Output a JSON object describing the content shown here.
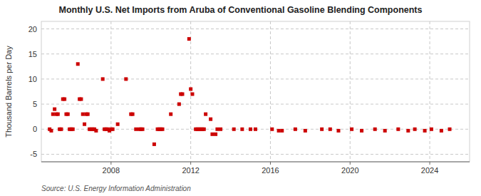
{
  "chart_data": {
    "type": "scatter",
    "title": "Monthly U.S. Net Imports from Aruba of Conventional Gasoline Blending Components",
    "y_label": "Thousand Barrels per Day",
    "annotations": [
      "Source: U.S. Energy Information Administration"
    ],
    "color": "#cc0000",
    "marker": "square",
    "grid": true,
    "xlim": [
      2004.5,
      2026.0
    ],
    "ylim": [
      -6.5,
      21.5
    ],
    "xticks": [
      2008,
      2012,
      2016,
      2020,
      2024
    ],
    "yticks": [
      -5,
      0,
      5,
      10,
      15,
      20
    ],
    "x": [
      2004.917,
      2005.0,
      2005.083,
      2005.167,
      2005.25,
      2005.333,
      2005.417,
      2005.5,
      2005.583,
      2005.667,
      2005.75,
      2005.833,
      2005.917,
      2006.0,
      2006.083,
      2006.333,
      2006.417,
      2006.5,
      2006.583,
      2006.667,
      2006.75,
      2006.833,
      2006.917,
      2007.0,
      2007.083,
      2007.167,
      2007.25,
      2007.583,
      2007.667,
      2007.75,
      2007.833,
      2007.917,
      2008.0,
      2008.083,
      2008.333,
      2008.75,
      2009.0,
      2009.083,
      2009.25,
      2009.417,
      2009.5,
      2009.583,
      2010.167,
      2010.333,
      2010.417,
      2010.5,
      2010.583,
      2011.0,
      2011.417,
      2011.5,
      2011.583,
      2011.917,
      2012.0,
      2012.083,
      2012.25,
      2012.333,
      2012.417,
      2012.5,
      2012.583,
      2012.667,
      2012.75,
      2013.0,
      2013.083,
      2013.25,
      2013.333,
      2013.5,
      2014.167,
      2014.583,
      2015.0,
      2015.25,
      2016.083,
      2016.417,
      2016.583,
      2017.25,
      2017.75,
      2018.583,
      2019.0,
      2019.417,
      2020.083,
      2020.583,
      2021.25,
      2021.75,
      2022.417,
      2022.917,
      2023.25,
      2023.75,
      2024.083,
      2024.583,
      2025.0
    ],
    "values": [
      0.0,
      -0.3,
      3.0,
      4.0,
      3.0,
      3.0,
      0.0,
      0.0,
      6.0,
      6.0,
      3.0,
      3.0,
      0.0,
      0.0,
      0.0,
      13.0,
      6.0,
      6.0,
      3.0,
      1.0,
      3.0,
      3.0,
      0.0,
      0.0,
      0.0,
      0.0,
      -0.3,
      10.0,
      0.0,
      0.0,
      0.0,
      -0.3,
      0.0,
      0.0,
      1.0,
      10.0,
      3.0,
      3.0,
      0.0,
      0.0,
      0.0,
      0.0,
      -3.0,
      0.0,
      0.0,
      0.0,
      0.0,
      3.0,
      5.0,
      7.0,
      7.0,
      18.0,
      8.0,
      7.0,
      0.0,
      0.0,
      0.0,
      0.0,
      0.0,
      0.0,
      3.0,
      2.0,
      -1.0,
      -1.0,
      0.0,
      0.0,
      0.0,
      0.0,
      0.0,
      0.0,
      0.0,
      -0.3,
      -0.3,
      0.0,
      -0.3,
      0.0,
      0.0,
      -0.3,
      0.0,
      -0.3,
      0.0,
      -0.3,
      0.0,
      -0.3,
      0.0,
      -0.3,
      0.0,
      -0.3,
      0.0
    ]
  }
}
